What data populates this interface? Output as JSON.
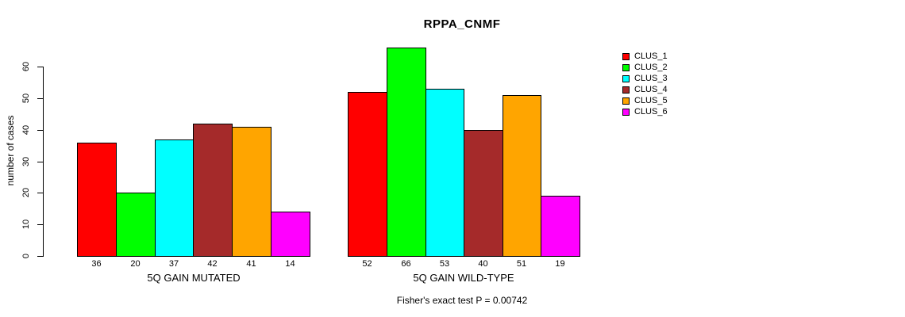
{
  "title": "RPPA_CNMF",
  "y_axis": {
    "label": "number of cases",
    "ticks": [
      0,
      10,
      20,
      30,
      40,
      50,
      60
    ]
  },
  "footer": "Fisher's exact test P = 0.00742",
  "legend": {
    "items": [
      {
        "label": "CLUS_1",
        "color": "#FF0000"
      },
      {
        "label": "CLUS_2",
        "color": "#00FF00"
      },
      {
        "label": "CLUS_3",
        "color": "#00FFFF"
      },
      {
        "label": "CLUS_4",
        "color": "#A52A2A"
      },
      {
        "label": "CLUS_5",
        "color": "#FFA500"
      },
      {
        "label": "CLUS_6",
        "color": "#FF00FF"
      }
    ]
  },
  "chart_data": {
    "type": "bar",
    "title": "RPPA_CNMF",
    "xlabel": "",
    "ylabel": "number of cases",
    "ylim": [
      0,
      66
    ],
    "yticks": [
      0,
      10,
      20,
      30,
      40,
      50,
      60
    ],
    "grid": false,
    "legend_position": "top-right",
    "categories": [
      "CLUS_1",
      "CLUS_2",
      "CLUS_3",
      "CLUS_4",
      "CLUS_5",
      "CLUS_6"
    ],
    "series_colors": [
      "#FF0000",
      "#00FF00",
      "#00FFFF",
      "#A52A2A",
      "#FFA500",
      "#FF00FF"
    ],
    "groups": [
      {
        "label": "5Q GAIN MUTATED",
        "values": [
          36,
          20,
          37,
          42,
          41,
          14
        ]
      },
      {
        "label": "5Q GAIN WILD-TYPE",
        "values": [
          52,
          66,
          53,
          40,
          51,
          19
        ]
      }
    ],
    "annotation": "Fisher's exact test P = 0.00742"
  }
}
